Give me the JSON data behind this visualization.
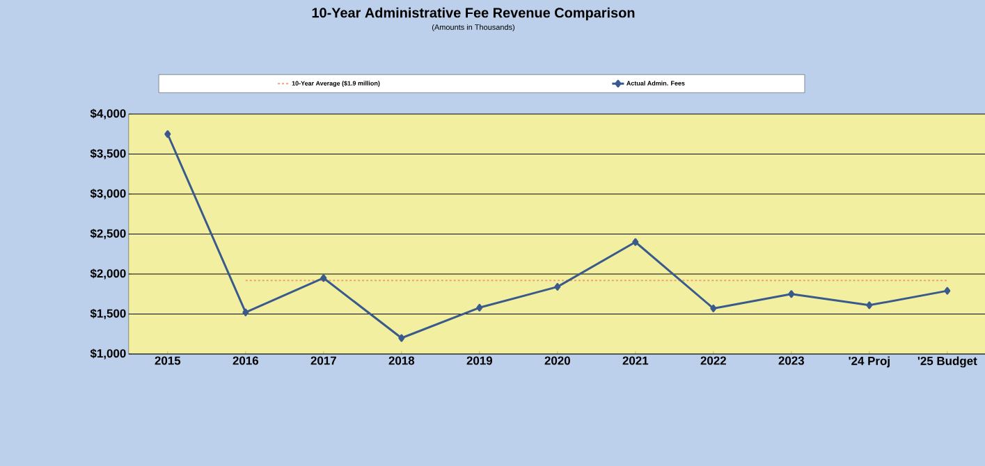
{
  "chart_data": {
    "type": "line",
    "title": "10-Year Administrative Fee Revenue Comparison",
    "subtitle": "(Amounts in Thousands)",
    "categories": [
      "2015",
      "2016",
      "2017",
      "2018",
      "2019",
      "2020",
      "2021",
      "2022",
      "2023",
      "'24 Proj",
      "'25 Budget"
    ],
    "series": [
      {
        "name": "10-Year Average ($1.9 million)",
        "color": "#f0a070",
        "line_style": "dashed",
        "marker": "none",
        "values": [
          null,
          1920,
          1920,
          1920,
          1920,
          1920,
          1920,
          1920,
          1920,
          1920,
          1920
        ]
      },
      {
        "name": "Actual Admin. Fees",
        "color": "#3a5a8c",
        "line_style": "solid",
        "marker": "diamond",
        "values": [
          3750,
          1520,
          1950,
          1200,
          1580,
          1840,
          2400,
          1570,
          1750,
          1610,
          1790
        ]
      }
    ],
    "ylim": [
      1000,
      4000
    ],
    "yticks": [
      {
        "value": 1000,
        "label": "$1,000"
      },
      {
        "value": 1500,
        "label": "$1,500"
      },
      {
        "value": 2000,
        "label": "$2,000"
      },
      {
        "value": 2500,
        "label": "$2,500"
      },
      {
        "value": 3000,
        "label": "$3,000"
      },
      {
        "value": 3500,
        "label": "$3,500"
      },
      {
        "value": 4000,
        "label": "$4,000"
      }
    ],
    "grid": "y",
    "legend": "top"
  }
}
